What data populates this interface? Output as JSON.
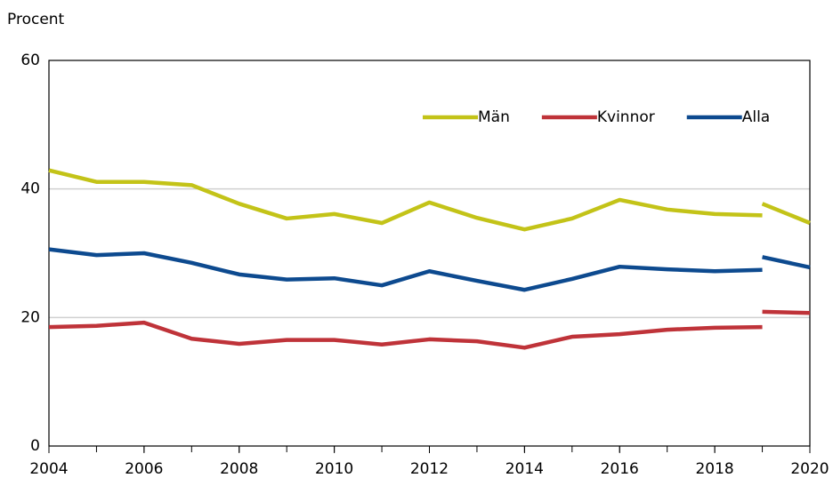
{
  "chart_data": {
    "type": "line",
    "y_label": "Procent",
    "x": [
      2004,
      2005,
      2006,
      2007,
      2008,
      2009,
      2010,
      2011,
      2012,
      2013,
      2014,
      2015,
      2016,
      2017,
      2018,
      2019,
      2019,
      2019,
      2020
    ],
    "series": [
      {
        "name": "Män",
        "color": "#c3c318",
        "values": [
          42.9,
          41.1,
          41.1,
          40.6,
          37.7,
          35.4,
          36.1,
          34.7,
          37.9,
          35.5,
          33.7,
          35.4,
          38.3,
          36.8,
          36.1,
          35.9,
          null,
          37.7,
          34.7
        ]
      },
      {
        "name": "Kvinnor",
        "color": "#bf3339",
        "values": [
          18.5,
          18.7,
          19.2,
          16.7,
          15.9,
          16.5,
          16.5,
          15.8,
          16.6,
          16.3,
          15.3,
          17.0,
          17.4,
          18.1,
          18.4,
          18.5,
          null,
          20.9,
          20.7
        ]
      },
      {
        "name": "Alla",
        "color": "#0d4a8f",
        "values": [
          30.6,
          29.7,
          30.0,
          28.5,
          26.7,
          25.9,
          26.1,
          25.0,
          27.2,
          25.7,
          24.3,
          26.0,
          27.9,
          27.5,
          27.2,
          27.4,
          null,
          29.4,
          27.8
        ]
      }
    ],
    "xlim": [
      2004,
      2020
    ],
    "xticks": [
      2004,
      2006,
      2008,
      2010,
      2012,
      2014,
      2016,
      2018,
      2020
    ],
    "ylim": [
      0,
      60
    ],
    "yticks": [
      0,
      20,
      40,
      60
    ],
    "grid": true,
    "legend": "upper right"
  }
}
